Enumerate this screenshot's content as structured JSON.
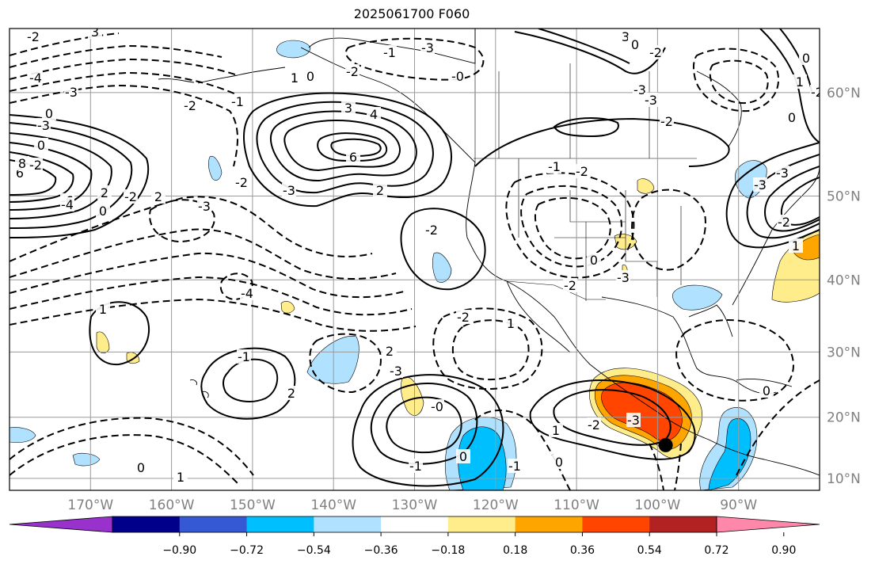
{
  "title": "2025061700 F060",
  "map": {
    "lon_range": [
      -180,
      -80
    ],
    "lat_range": [
      8,
      65
    ],
    "lon_ticks": [
      {
        "value": -170,
        "label": "170°W"
      },
      {
        "value": -160,
        "label": "160°W"
      },
      {
        "value": -150,
        "label": "150°W"
      },
      {
        "value": -140,
        "label": "140°W"
      },
      {
        "value": -130,
        "label": "130°W"
      },
      {
        "value": -120,
        "label": "120°W"
      },
      {
        "value": -110,
        "label": "110°W"
      },
      {
        "value": -100,
        "label": "100°W"
      },
      {
        "value": -90,
        "label": "90°W"
      }
    ],
    "lat_ticks": [
      {
        "value": 60,
        "label": "60°N"
      },
      {
        "value": 50,
        "label": "50°N"
      },
      {
        "value": 40,
        "label": "40°N"
      },
      {
        "value": 30,
        "label": "30°N"
      },
      {
        "value": 20,
        "label": "20°N"
      },
      {
        "value": 10,
        "label": "10°N"
      }
    ],
    "grid": true,
    "marker": {
      "lon": -99,
      "lat": 15.5,
      "color": "#000000"
    }
  },
  "contour_labels": [
    "-2",
    "3",
    "-4",
    "-3",
    "-2",
    "-1",
    "-2",
    "-3",
    "-4",
    "0",
    "2",
    "0",
    "2",
    "-3",
    "-6",
    "0",
    "3",
    "4",
    "6",
    "2",
    "-2",
    "-3",
    "6",
    "8",
    "-4",
    "-2",
    "1",
    "0",
    "-2",
    "-1",
    "-3",
    "-0",
    "2",
    "-3",
    "-2",
    "1",
    "0",
    "-2",
    "-3",
    "-1",
    "-2",
    "-3",
    "-3",
    "-2",
    "3",
    "0",
    "-2",
    "0",
    "1",
    "0",
    "-2",
    "1",
    "-2",
    "-1",
    "2",
    "1",
    "0",
    "1",
    "0",
    "-1",
    "-1",
    "0",
    "-0",
    "-2",
    "-3",
    "0",
    "1",
    "-3",
    "-3",
    "-2"
  ],
  "colorbar": {
    "colors": [
      "#9932cc",
      "#00008b",
      "#3559d4",
      "#00bfff",
      "#b0e2ff",
      "#ffffff",
      "#ffec8b",
      "#ffa500",
      "#ff4500",
      "#b22222",
      "#ff88aa"
    ],
    "tick_labels": [
      "−0.90",
      "−0.72",
      "−0.54",
      "−0.36",
      "−0.18",
      "0.18",
      "0.36",
      "0.54",
      "0.72",
      "0.90"
    ]
  }
}
